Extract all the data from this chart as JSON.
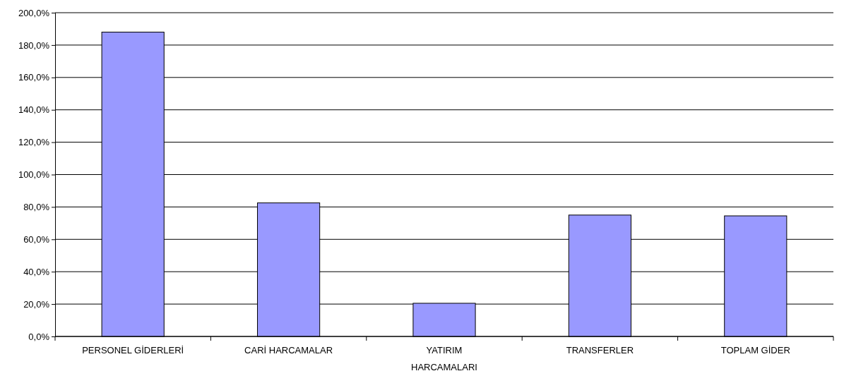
{
  "chart_data": {
    "type": "bar",
    "categories": [
      "PERSONEL GİDERLERİ",
      "CARİ HARCAMALAR",
      "YATIRIM HARCAMALARI",
      "TRANSFERLER",
      "TOPLAM GİDER"
    ],
    "values": [
      188,
      82.5,
      20.5,
      75,
      74.5
    ],
    "color": "#9999ff",
    "ylim": [
      0,
      200
    ],
    "yticks": [
      {
        "value": 0,
        "label": "0,0%"
      },
      {
        "value": 20,
        "label": "20,0%"
      },
      {
        "value": 40,
        "label": "40,0%"
      },
      {
        "value": 60,
        "label": "60,0%"
      },
      {
        "value": 80,
        "label": "80,0%"
      },
      {
        "value": 100,
        "label": "100,0%"
      },
      {
        "value": 120,
        "label": "120,0%"
      },
      {
        "value": 140,
        "label": "140,0%"
      },
      {
        "value": 160,
        "label": "160,0%"
      },
      {
        "value": 180,
        "label": "180,0%"
      },
      {
        "value": 200,
        "label": "200,0%"
      }
    ],
    "grid": "y"
  }
}
